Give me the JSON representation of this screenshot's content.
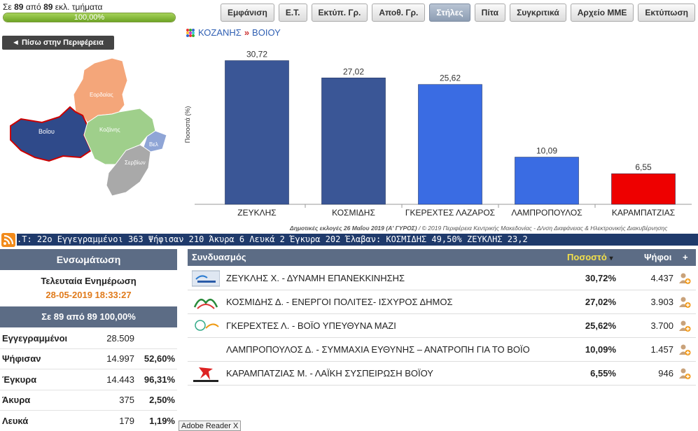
{
  "progress": {
    "prefix": "Σε",
    "counted": "89",
    "mid": "από",
    "total": "89",
    "suffix": "εκλ. τμήματα",
    "percent_text": "100,00%",
    "fraction": 1.0
  },
  "toolbar": [
    "Εμφάνιση",
    "Ε.Τ.",
    "Εκτύπ. Γρ.",
    "Αποθ. Γρ.",
    "Στήλες",
    "Πίτα",
    "Συγκριτικά",
    "Αρχείο ΜΜΕ",
    "Εκτύπωση"
  ],
  "toolbar_active": "Στήλες",
  "back_button": "◄ Πίσω στην Περιφέρεια",
  "map": {
    "labels": [
      "Εορδαίας",
      "Βοΐου",
      "Κοζάνης",
      "Βελ",
      "Σερβίων"
    ]
  },
  "breadcrumb": {
    "region": "ΚΟΖΑΝΗΣ",
    "separator": "»",
    "area": "ΒΟΙΟΥ"
  },
  "chart_data": {
    "type": "bar",
    "categories": [
      "ΖΕΥΚΛΗΣ",
      "ΚΟΣΜΙΔΗΣ",
      "ΓΚΕΡΕΧΤΕΣ ΛΑΖΑΡΟΣ",
      "ΛΑΜΠΡΟΠΟΥΛΟΣ",
      "ΚΑΡΑΜΠΑΤΖΙΑΣ"
    ],
    "values": [
      30.72,
      27.02,
      25.62,
      10.09,
      6.55
    ],
    "value_labels": [
      "30,72",
      "27,02",
      "25,62",
      "10,09",
      "6,55"
    ],
    "colors": [
      "#3a5696",
      "#3a5696",
      "#3a6ce3",
      "#3a6ce3",
      "#ee0000"
    ],
    "ylabel": "Ποσοστά (%)",
    "xlabel": "",
    "title": "",
    "ylim": [
      0,
      32
    ],
    "grid": false,
    "legend": "none"
  },
  "footnote": {
    "prefix": "Δημοτικές εκλογές 26 Μαΐου 2019 (Α' ΓΥΡΟΣ)",
    "rest": " / © 2019 Περιφέρεια Κεντρικής Μακεδονίας - Δ/νση Διαφάνειας & Ηλεκτρονικής Διακυβέρνησης"
  },
  "ticker_text": ".Τ: 22ο  Εγγεγραμμένοι 363  Ψήφισαν 210  Άκυρα 6  Λευκά 2  Έγκυρα 202  Έλαβαν: ΚΟΣΜΙΔΗΣ 49,50%  ΖΕΥΚΛΗΣ 23,2",
  "stats_panel": {
    "header": "Ενσωμάτωση",
    "update_label": "Τελευταία Ενημέρωση",
    "update_time": "28-05-2019 18:33:27",
    "count_header": "Σε 89 από  89   100,00%",
    "rows": [
      {
        "name": "Εγγεγραμμένοι",
        "value": "28.509",
        "pct": ""
      },
      {
        "name": "Ψήφισαν",
        "value": "14.997",
        "pct": "52,60%"
      },
      {
        "name": "Έγκυρα",
        "value": "14.443",
        "pct": "96,31%"
      },
      {
        "name": "Άκυρα",
        "value": "375",
        "pct": "2,50%"
      },
      {
        "name": "Λευκά",
        "value": "179",
        "pct": "1,19%"
      }
    ]
  },
  "results": {
    "headers": {
      "party": "Συνδυασμός",
      "pct": "Ποσοστό",
      "sort_indicator": "▾",
      "votes": "Ψήφοι",
      "plus": "+"
    },
    "rows": [
      {
        "name": "ΖΕΥΚΛΗΣ Χ. - ΔΥΝΑΜΗ ΕΠΑΝΕΚΚΙΝΗΣΗΣ",
        "pct": "30,72%",
        "votes": "4.437",
        "logo": "party-logo-1"
      },
      {
        "name": "ΚΟΣΜΙΔΗΣ Δ. - ΕΝΕΡΓΟΙ ΠΟΛΙΤΕΣ- ΙΣΧΥΡΟΣ ΔΗΜΟΣ",
        "pct": "27,02%",
        "votes": "3.903",
        "logo": "party-logo-2"
      },
      {
        "name": "ΓΚΕΡΕΧΤΕΣ Λ. - ΒΟΪΟ ΥΠΕΥΘΥΝΑ ΜΑΖΙ",
        "pct": "25,62%",
        "votes": "3.700",
        "logo": "party-logo-3"
      },
      {
        "name": "ΛΑΜΠΡΟΠΟΥΛΟΣ Δ. - ΣΥΜΜΑΧΙΑ ΕΥΘΥΝΗΣ – ΑΝΑΤΡΟΠΗ ΓΙΑ ΤΟ ΒΟΪΟ",
        "pct": "10,09%",
        "votes": "1.457",
        "logo": ""
      },
      {
        "name": "ΚΑΡΑΜΠΑΤΖΙΑΣ Μ. - ΛΑΪΚΗ ΣΥΣΠΕΙΡΩΣΗ ΒΟΪΟΥ",
        "pct": "6,55%",
        "votes": "946",
        "logo": "party-logo-5"
      }
    ]
  },
  "tooltip": "Adobe Reader X",
  "colors": {
    "accent": "#5c6c85",
    "time": "#e07a1a",
    "ticker_bg": "#1f3a6b"
  }
}
